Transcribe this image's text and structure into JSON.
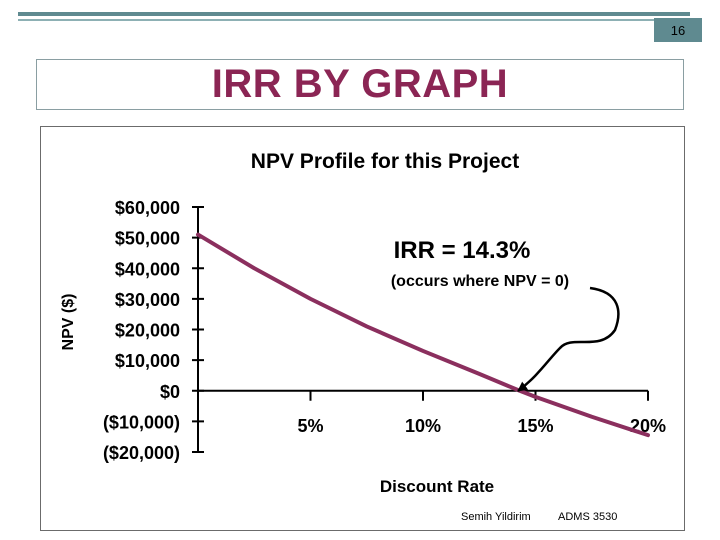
{
  "slide": {
    "page_number": "16",
    "title": "IRR BY GRAPH"
  },
  "footer": {
    "author": "Semih Yildirim",
    "course": "ADMS 3530"
  },
  "colors": {
    "accent_teal": "#5f8a90",
    "title_maroon": "#8b2554",
    "series_line": "#8b2f5e"
  },
  "chart_data": {
    "type": "line",
    "title": "NPV Profile for this Project",
    "xlabel": "Discount Rate",
    "ylabel": "NPV ($)",
    "xlim": [
      0,
      20
    ],
    "ylim": [
      -20000,
      60000
    ],
    "y_ticks": [
      60000,
      50000,
      40000,
      30000,
      20000,
      10000,
      0,
      -10000,
      -20000
    ],
    "y_tick_labels": [
      "$60,000",
      "$50,000",
      "$40,000",
      "$30,000",
      "$20,000",
      "$10,000",
      "$0",
      "($10,000)",
      "($20,000)"
    ],
    "x_ticks": [
      5,
      10,
      15,
      20
    ],
    "x_tick_labels": [
      "5%",
      "10%",
      "15%",
      "20%"
    ],
    "grid": false,
    "series": [
      {
        "x": [
          0,
          2.5,
          5,
          7.5,
          10,
          12.5,
          14.3,
          15,
          17.5,
          20
        ],
        "y": [
          51000,
          40000,
          30000,
          21000,
          13000,
          5500,
          0,
          -2000,
          -8500,
          -14500
        ]
      }
    ],
    "annotations": [
      {
        "text": "IRR = 14.3%",
        "x": 14.3,
        "y": 0
      },
      {
        "text": "(occurs where NPV = 0)"
      }
    ]
  }
}
